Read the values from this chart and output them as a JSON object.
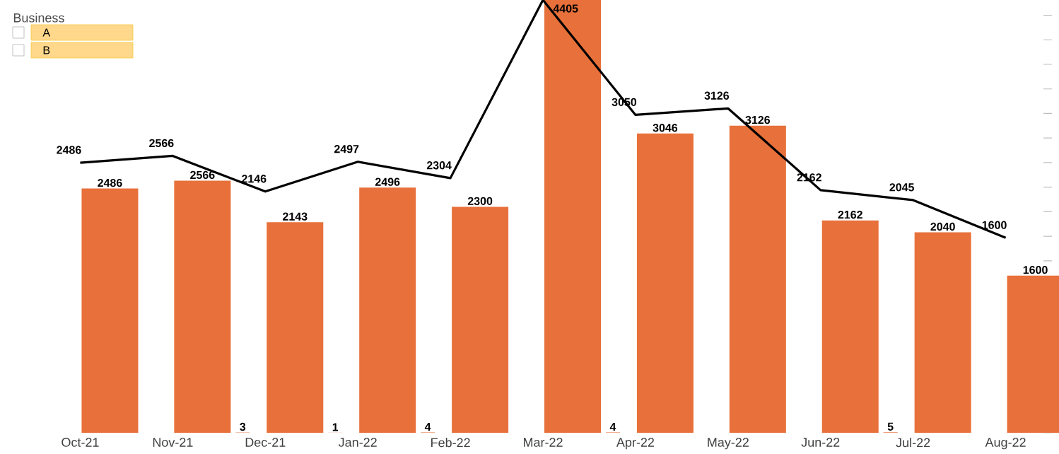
{
  "chart_data": {
    "type": "bar",
    "annotations": [
      "Business",
      "A",
      "B"
    ],
    "categories": [
      "Oct-21",
      "Nov-21",
      "Dec-21",
      "Jan-22",
      "Feb-22",
      "Mar-22",
      "Apr-22",
      "May-22",
      "Jun-22",
      "Jul-22",
      "Aug-22"
    ],
    "series": [
      {
        "color": "#e8703a",
        "values": [
          null,
          null,
          3,
          1,
          4,
          null,
          4,
          null,
          null,
          5,
          null
        ],
        "value_labels": [
          null,
          null,
          "3",
          "1",
          "4",
          null,
          "4",
          null,
          null,
          "5",
          null
        ]
      },
      {
        "color": "#e8703a",
        "values": [
          2486,
          2566,
          2143,
          2496,
          2300,
          4405,
          3046,
          3126,
          2162,
          2040,
          1600
        ],
        "value_labels": [
          "2486",
          "2566",
          "2143",
          "2496",
          "2300",
          null,
          "3046",
          "3126",
          "2162",
          "2040",
          "1600"
        ]
      },
      {
        "type": "line",
        "axis": "y2",
        "color": "#000000",
        "values": [
          2486,
          2566,
          2146,
          2497,
          2304,
          4405,
          3050,
          3126,
          2162,
          2045,
          1600
        ],
        "value_labels": [
          "2486",
          "2566",
          "2146",
          "2497",
          "2304",
          "4405",
          "3050",
          "3126",
          "2162",
          "2045",
          "1600"
        ]
      }
    ],
    "ylim": [
      0,
      4405
    ],
    "y2lim": [
      -700,
      4405
    ],
    "yticks": [
      {
        "value": 0,
        "label": null
      },
      {
        "value": 250,
        "label": null
      },
      {
        "value": 500,
        "label": null
      },
      {
        "value": 750,
        "label": null
      },
      {
        "value": 1000,
        "label": null
      },
      {
        "value": 1250,
        "label": null
      },
      {
        "value": 1500,
        "label": null
      },
      {
        "value": 1750,
        "label": null
      },
      {
        "value": 2000,
        "label": null
      },
      {
        "value": 2250,
        "label": null
      },
      {
        "value": 2500,
        "label": null
      },
      {
        "value": 2750,
        "label": null
      },
      {
        "value": 3000,
        "label": null
      },
      {
        "value": 3250,
        "label": null
      },
      {
        "value": 3500,
        "label": null
      },
      {
        "value": 3750,
        "label": null
      },
      {
        "value": 4000,
        "label": null
      },
      {
        "value": 4250,
        "label": null
      }
    ],
    "tick_labels": "x"
  }
}
